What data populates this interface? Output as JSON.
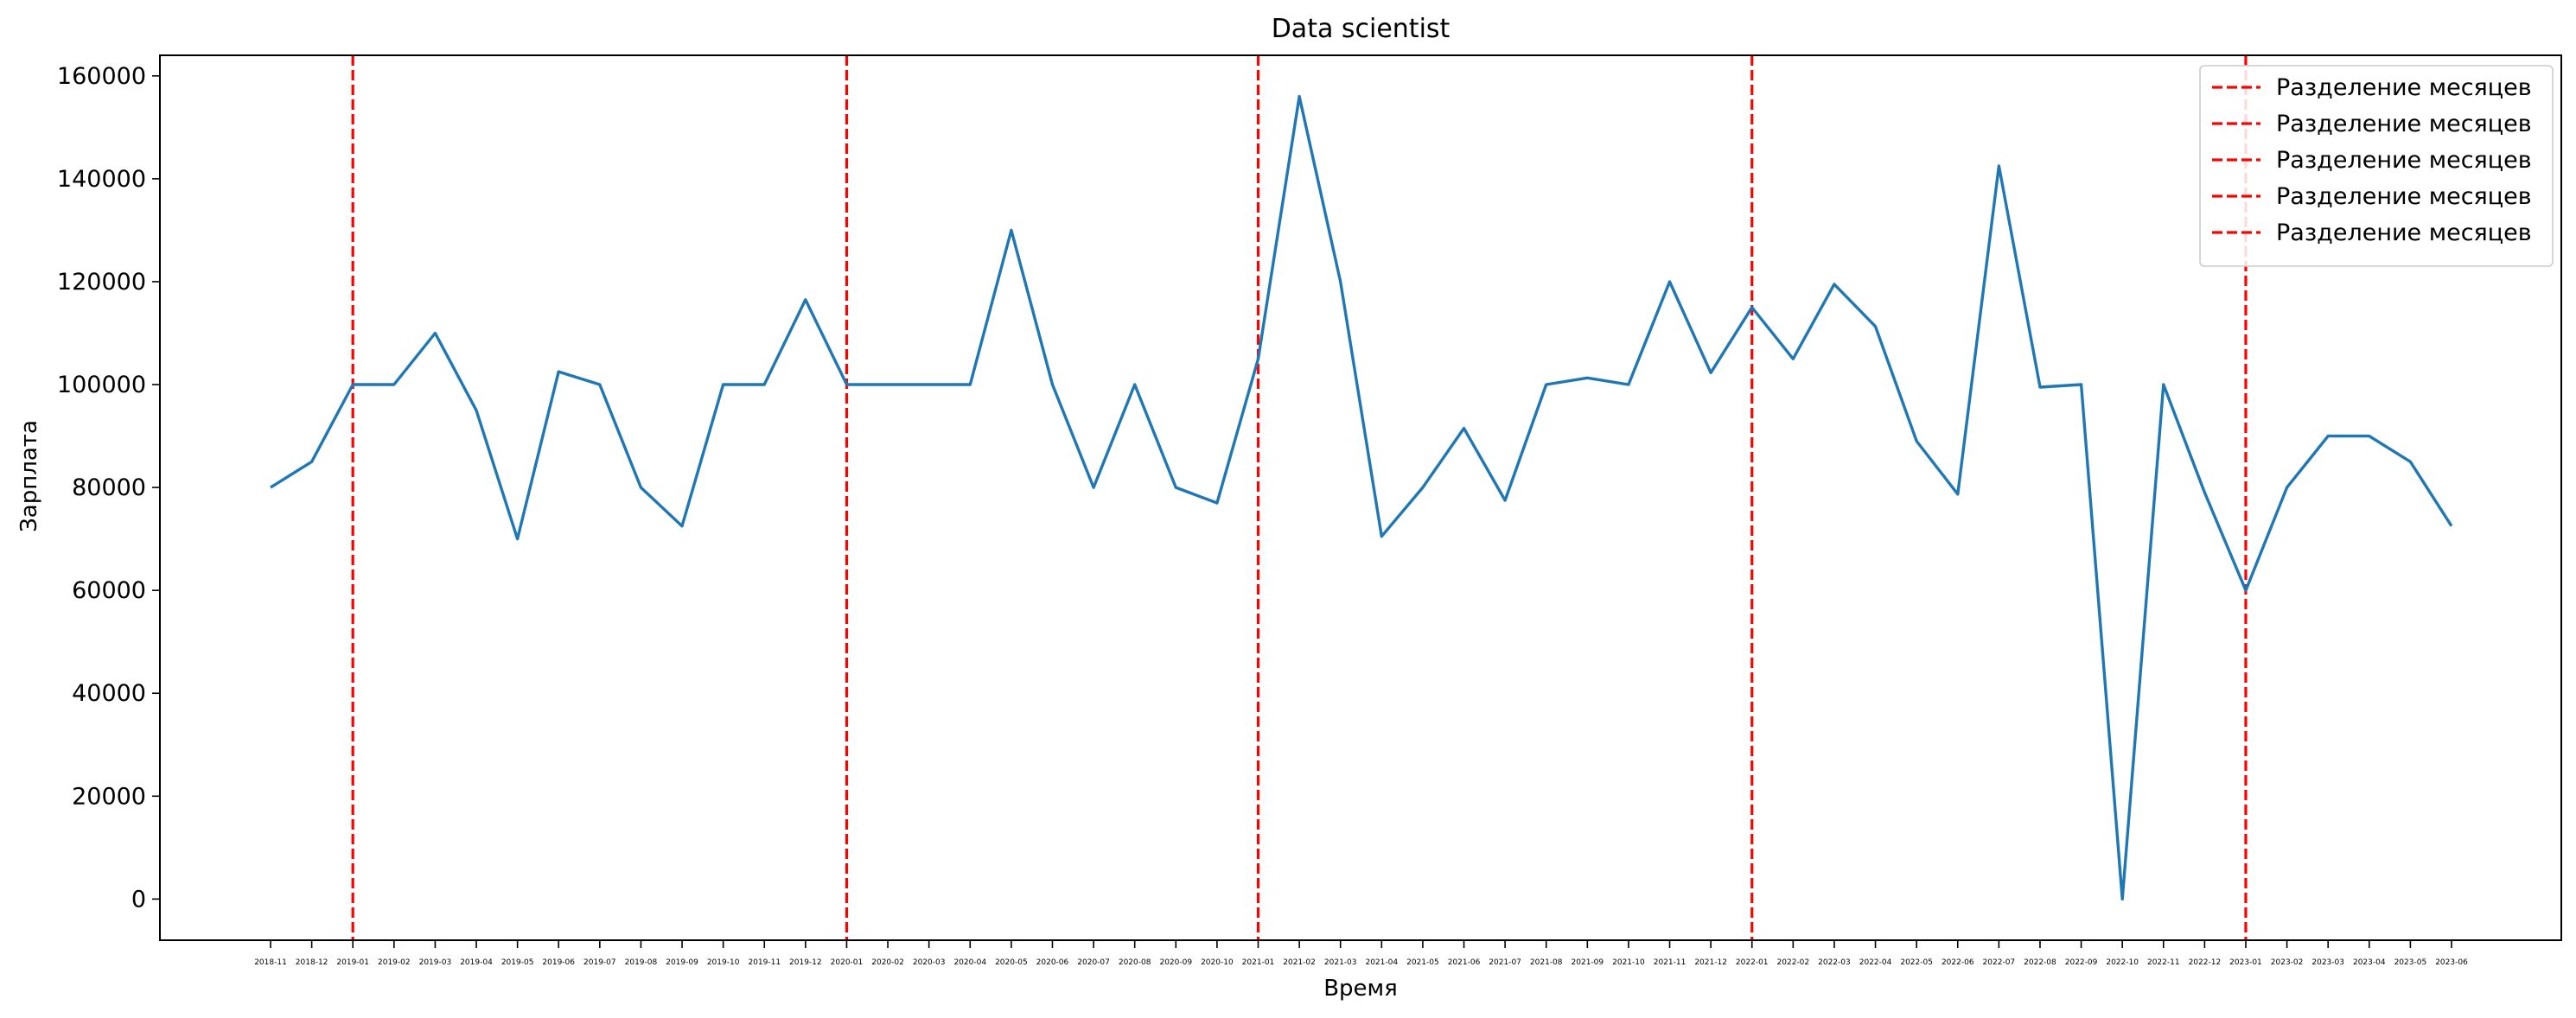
{
  "chart_data": {
    "type": "line",
    "title": "Data scientist",
    "xlabel": "Время",
    "ylabel": "Зарплата",
    "ylim": [
      -8000,
      164000
    ],
    "yticks": [
      0,
      20000,
      40000,
      60000,
      80000,
      100000,
      120000,
      140000,
      160000
    ],
    "grid": false,
    "legend_position": "top-right",
    "line_color": "#1f77b4",
    "separator_color": "#ff0000",
    "categories": [
      "2018-11",
      "2018-12",
      "2019-01",
      "2019-02",
      "2019-03",
      "2019-04",
      "2019-05",
      "2019-06",
      "2019-07",
      "2019-08",
      "2019-09",
      "2019-10",
      "2019-11",
      "2019-12",
      "2020-01",
      "2020-02",
      "2020-03",
      "2020-04",
      "2020-05",
      "2020-06",
      "2020-07",
      "2020-08",
      "2020-09",
      "2020-10",
      "2021-01",
      "2021-02",
      "2021-03",
      "2021-04",
      "2021-05",
      "2021-06",
      "2021-07",
      "2021-08",
      "2021-09",
      "2021-10",
      "2021-11",
      "2021-12",
      "2022-01",
      "2022-02",
      "2022-03",
      "2022-04",
      "2022-05",
      "2022-06",
      "2022-07",
      "2022-08",
      "2022-09",
      "2022-10",
      "2022-11",
      "2022-12",
      "2023-01",
      "2023-02",
      "2023-03",
      "2023-04",
      "2023-05",
      "2023-06"
    ],
    "values": [
      80000,
      85000,
      100000,
      100000,
      110000,
      95000,
      70000,
      102500,
      100000,
      80000,
      72500,
      100000,
      100000,
      116500,
      100000,
      100000,
      100000,
      100000,
      130000,
      100000,
      80000,
      100000,
      80000,
      77000,
      105000,
      156000,
      120000,
      70500,
      80000,
      91500,
      77500,
      100000,
      101300,
      100000,
      120000,
      102300,
      115000,
      105000,
      119500,
      111300,
      89000,
      78700,
      142500,
      99500,
      100000,
      0,
      100000,
      79000,
      60000,
      80000,
      90000,
      90000,
      85000,
      72500
    ],
    "separators": [
      "2019-01",
      "2020-01",
      "2021-01",
      "2022-01",
      "2023-01"
    ],
    "legend": [
      "Разделение месяцев",
      "Разделение месяцев",
      "Разделение месяцев",
      "Разделение месяцев",
      "Разделение месяцев"
    ]
  }
}
